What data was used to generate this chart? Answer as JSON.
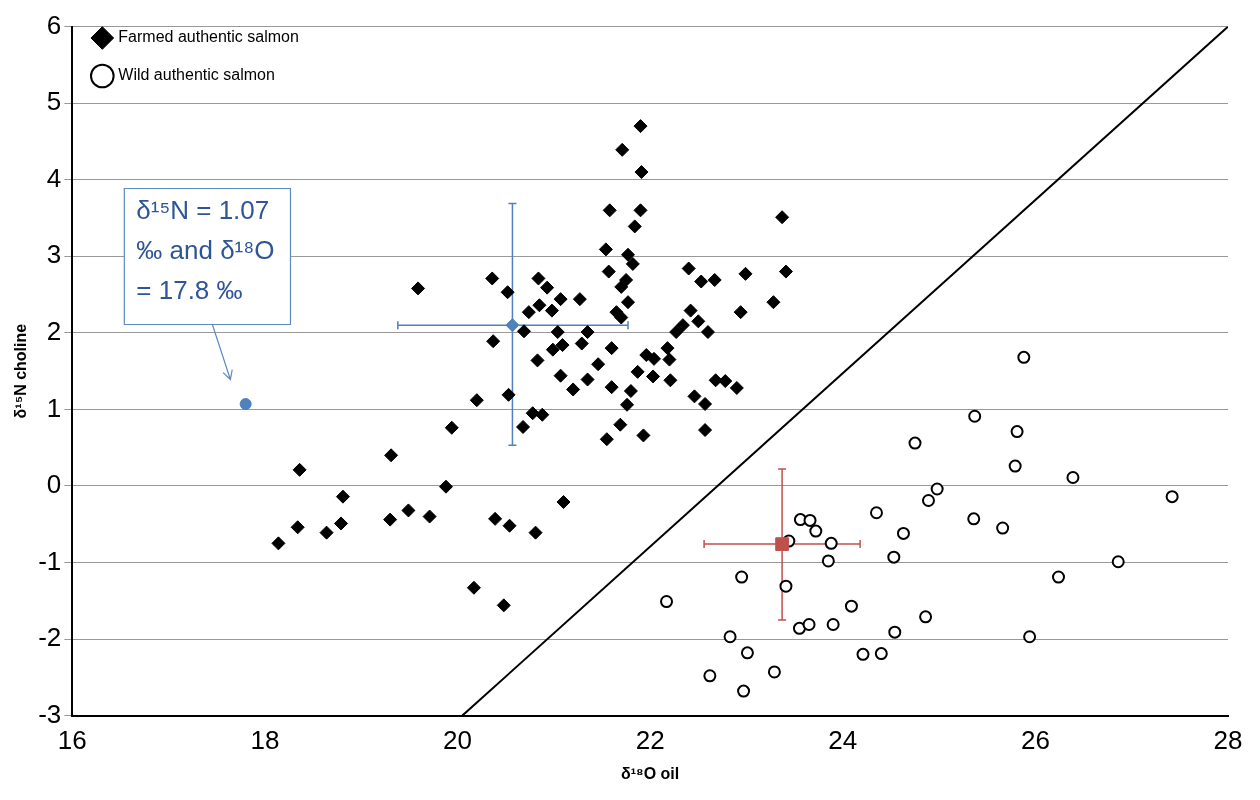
{
  "chart_data": {
    "type": "scatter",
    "xlabel": "δ¹⁸O oil",
    "ylabel": "δ¹⁵N choline",
    "xlim": [
      16,
      28
    ],
    "ylim": [
      -3,
      6
    ],
    "xticks": [
      16,
      18,
      20,
      22,
      24,
      26,
      28
    ],
    "yticks": [
      -3,
      -2,
      -1,
      0,
      1,
      2,
      3,
      4,
      5,
      6
    ],
    "grid": "y",
    "legend": "top left",
    "annotations": [
      "δ¹⁵N = 1.07 ‰ and δ¹⁸O = 17.8 ‰"
    ],
    "series": [
      {
        "name": "Farmed authentic salmon",
        "type": "scatter",
        "marker": "diamond",
        "color": "#000000",
        "x": [
          21.9,
          21.71,
          21.91,
          21.58,
          21.9,
          21.84,
          23.37,
          21.54,
          21.77,
          21.82,
          21.57,
          21.75,
          21.7,
          21.77,
          21.65,
          21.7,
          22.4,
          22.53,
          22.67,
          22.99,
          23.41,
          22.94,
          23.28,
          22.42,
          22.5,
          22.6,
          22.34,
          22.27,
          20.36,
          20.52,
          20.84,
          20.93,
          21.07,
          21.27,
          20.85,
          20.74,
          20.98,
          20.69,
          20.37,
          21.04,
          20.99,
          21.09,
          21.35,
          21.29,
          20.83,
          21.6,
          21.46,
          21.07,
          21.2,
          21.35,
          21.6,
          21.96,
          22.04,
          22.18,
          22.2,
          21.87,
          22.03,
          22.21,
          21.8,
          21.76,
          22.46,
          22.57,
          22.68,
          22.78,
          22.9,
          20.2,
          20.53,
          20.78,
          20.88,
          20.68,
          21.69,
          21.55,
          21.93,
          22.57,
          19.59,
          19.94,
          19.31,
          18.36,
          18.81,
          19.88,
          18.14,
          18.34,
          18.64,
          18.79,
          19.3,
          19.49,
          19.71,
          20.39,
          20.54,
          20.17,
          20.48,
          20.81,
          21.1
        ],
        "values": [
          4.7,
          4.39,
          4.1,
          3.6,
          3.6,
          3.39,
          3.51,
          3.09,
          3.02,
          2.9,
          2.8,
          2.69,
          2.6,
          2.4,
          2.27,
          2.2,
          2.84,
          2.67,
          2.69,
          2.77,
          2.8,
          2.27,
          2.4,
          2.29,
          2.15,
          2.01,
          2.1,
          2.01,
          2.71,
          2.53,
          2.71,
          2.59,
          2.44,
          2.44,
          2.36,
          2.27,
          2.29,
          2.02,
          1.89,
          2.01,
          1.78,
          1.84,
          2.01,
          1.86,
          1.64,
          1.8,
          1.59,
          1.44,
          1.26,
          1.39,
          1.29,
          1.71,
          1.66,
          1.8,
          1.65,
          1.49,
          1.43,
          1.38,
          1.24,
          1.06,
          1.17,
          1.07,
          1.38,
          1.37,
          1.28,
          1.12,
          1.19,
          0.95,
          0.93,
          0.77,
          0.8,
          0.61,
          0.66,
          0.73,
          2.58,
          0.76,
          0.4,
          0.21,
          -0.14,
          -0.01,
          -0.75,
          -0.54,
          -0.61,
          -0.49,
          -0.44,
          -0.32,
          -0.4,
          -0.43,
          -0.52,
          -1.33,
          -1.56,
          -0.61,
          -0.21
        ]
      },
      {
        "name": "Wild authentic salmon",
        "type": "scatter",
        "marker": "circle",
        "color": "#000000",
        "x": [
          25.88,
          25.37,
          25.81,
          24.75,
          25.79,
          26.39,
          27.42,
          24.98,
          24.89,
          24.35,
          25.36,
          25.66,
          23.56,
          23.66,
          23.72,
          23.44,
          23.88,
          24.63,
          24.53,
          23.85,
          26.86,
          22.95,
          23.41,
          26.24,
          22.17,
          24.09,
          24.86,
          23.55,
          23.65,
          23.9,
          24.54,
          22.83,
          25.94,
          23.01,
          24.21,
          24.4,
          23.29,
          22.62,
          22.97
        ],
        "values": [
          1.68,
          0.91,
          0.71,
          0.56,
          0.26,
          0.11,
          -0.14,
          -0.04,
          -0.19,
          -0.35,
          -0.43,
          -0.55,
          -0.44,
          -0.45,
          -0.59,
          -0.72,
          -0.75,
          -0.62,
          -0.93,
          -0.98,
          -0.99,
          -1.19,
          -1.31,
          -1.19,
          -1.51,
          -1.57,
          -1.71,
          -1.86,
          -1.81,
          -1.81,
          -1.91,
          -1.97,
          -1.97,
          -2.18,
          -2.2,
          -2.19,
          -2.43,
          -2.48,
          -2.68
        ]
      },
      {
        "type": "scatter",
        "marker": "diamond",
        "color": "#4f81bd",
        "x": [
          20.57
        ],
        "values": [
          2.1
        ],
        "errors": [
          [
            0.53,
            3.69
          ]
        ],
        "xerrors": [
          [
            19.38,
            21.77
          ]
        ]
      },
      {
        "type": "scatter",
        "marker": "square",
        "color": "#c0504d",
        "x": [
          23.37
        ],
        "values": [
          -0.76
        ],
        "errors": [
          [
            -1.75,
            0.22
          ]
        ],
        "xerrors": [
          [
            22.56,
            24.18
          ]
        ]
      },
      {
        "type": "scatter",
        "marker": "circle",
        "color": "#4f81bd",
        "x": [
          17.8
        ],
        "values": [
          1.07
        ]
      },
      {
        "type": "line",
        "marker": "none",
        "color": "#000000",
        "x": [
          20.05,
          28
        ],
        "values": [
          -3,
          6
        ]
      }
    ]
  }
}
